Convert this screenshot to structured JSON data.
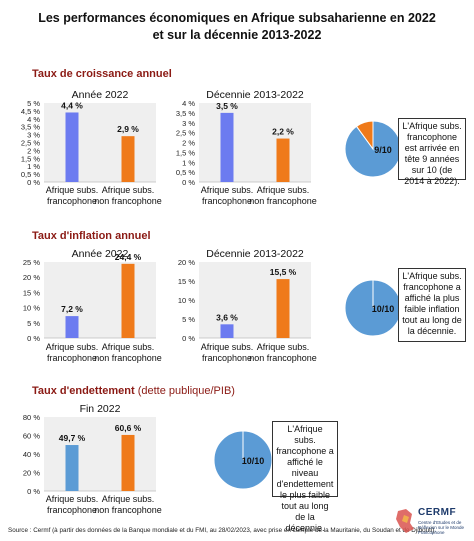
{
  "title_line1": "Les performances économiques en Afrique subsaharienne en 2022",
  "title_line2": "et sur la décennie 2013-2022",
  "sections": {
    "croissance": {
      "title": "Taux de croissance annuel"
    },
    "inflation": {
      "title": "Taux d'inflation annuel"
    },
    "endettement": {
      "title": "Taux d'endettement",
      "subtitle": "(dette publique/PIB)"
    }
  },
  "chart_data": [
    {
      "type": "bar",
      "title": "Année 2022",
      "categories": [
        "Afrique subs.\nfrancophone",
        "Afrique subs.\nnon francophone"
      ],
      "values": [
        4.4,
        2.9
      ],
      "data_labels": [
        "4,4 %",
        "2,9 %"
      ],
      "ylim": [
        0,
        5
      ],
      "yticks": [
        0,
        0.5,
        1,
        1.5,
        2,
        2.5,
        3,
        3.5,
        4,
        4.5,
        5
      ],
      "ytick_labels": [
        "0 %",
        "0,5 %",
        "1 %",
        "1,5 %",
        "2 %",
        "2,5 %",
        "3 %",
        "3,5 %",
        "4 %",
        "4,5 %",
        "5 %"
      ],
      "colors": [
        "#6c7bf0",
        "#ef7a1a"
      ]
    },
    {
      "type": "bar",
      "title": "Décennie 2013-2022",
      "categories": [
        "Afrique subs.\nfrancophone",
        "Afrique subs.\nnon francophone"
      ],
      "values": [
        3.5,
        2.2
      ],
      "data_labels": [
        "3,5 %",
        "2,2 %"
      ],
      "ylim": [
        0,
        4
      ],
      "yticks": [
        0,
        0.5,
        1,
        1.5,
        2,
        2.5,
        3,
        3.5,
        4
      ],
      "ytick_labels": [
        "0 %",
        "0,5 %",
        "1 %",
        "1,5 %",
        "2 %",
        "2,5 %",
        "3 %",
        "3,5 %",
        "4 %"
      ],
      "colors": [
        "#6c7bf0",
        "#ef7a1a"
      ]
    },
    {
      "type": "pie",
      "values": [
        9,
        1
      ],
      "label": "9/10",
      "colors": [
        "#5b9bd5",
        "#ef7a1a"
      ]
    },
    {
      "type": "bar",
      "title": "Année 2022",
      "categories": [
        "Afrique subs.\nfrancophone",
        "Afrique subs.\nnon francophone"
      ],
      "values": [
        7.2,
        24.4
      ],
      "data_labels": [
        "7,2 %",
        "24,4 %"
      ],
      "ylim": [
        0,
        25
      ],
      "yticks": [
        0,
        5,
        10,
        15,
        20,
        25
      ],
      "ytick_labels": [
        "0 %",
        "5 %",
        "10 %",
        "15 %",
        "20 %",
        "25 %"
      ],
      "colors": [
        "#6c7bf0",
        "#ef7a1a"
      ]
    },
    {
      "type": "bar",
      "title": "Décennie 2013-2022",
      "categories": [
        "Afrique subs.\nfrancophone",
        "Afrique subs.\nnon francophone"
      ],
      "values": [
        3.6,
        15.5
      ],
      "data_labels": [
        "3,6 %",
        "15,5 %"
      ],
      "ylim": [
        0,
        20
      ],
      "yticks": [
        0,
        5,
        10,
        15,
        20
      ],
      "ytick_labels": [
        "0 %",
        "5 %",
        "10 %",
        "15 %",
        "20 %"
      ],
      "colors": [
        "#6c7bf0",
        "#ef7a1a"
      ]
    },
    {
      "type": "pie",
      "values": [
        10,
        0
      ],
      "label": "10/10",
      "colors": [
        "#5b9bd5",
        "#ef7a1a"
      ]
    },
    {
      "type": "bar",
      "title": "Fin 2022",
      "categories": [
        "Afrique subs.\nfrancophone",
        "Afrique subs.\nnon francophone"
      ],
      "values": [
        49.7,
        60.6
      ],
      "data_labels": [
        "49,7 %",
        "60,6 %"
      ],
      "ylim": [
        0,
        80
      ],
      "yticks": [
        0,
        20,
        40,
        60,
        80
      ],
      "ytick_labels": [
        "0 %",
        "20 %",
        "40 %",
        "60 %",
        "80 %"
      ],
      "colors": [
        "#5b9bd5",
        "#ef7a1a"
      ]
    },
    {
      "type": "pie",
      "values": [
        10,
        0
      ],
      "label": "10/10",
      "colors": [
        "#5b9bd5",
        "#ef7a1a"
      ]
    }
  ],
  "callouts": {
    "croissance": "L'Afrique subs. francophone est arrivée en tête 9 années sur 10 (de 2014 à 2022).",
    "inflation": "L'Afrique subs. francophone a affiché la plus faible inflation tout au long de la décennie.",
    "endettement": "L'Afrique subs. francophone a affiché le niveau d'endettement le plus faible tout au long de la décennie."
  },
  "footer": "Source : Cermf (à partir des données de la Banque mondiale et du FMI, au 28/02/2023, avec prise en compte de la Mauritanie, du Soudan et de Djibouti).",
  "logo": {
    "name": "CERMF",
    "tagline": "Centre d'Etudes et de Réflexion sur le Monde Francophone"
  }
}
